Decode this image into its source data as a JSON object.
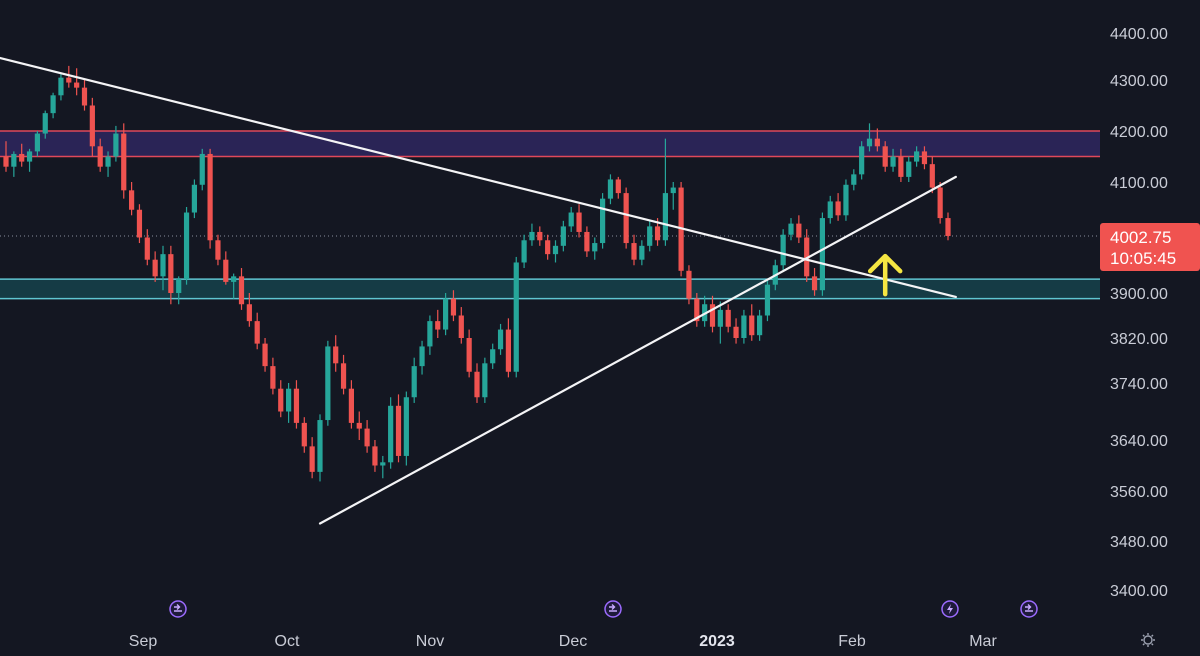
{
  "chart_data": {
    "type": "candlestick",
    "price_axis": {
      "ticks": [
        "4400.00",
        "4300.00",
        "4200.00",
        "4100.00",
        "3900.00",
        "3820.00",
        "3740.00",
        "3640.00",
        "3560.00",
        "3480.00",
        "3400.00"
      ],
      "last_price_label": "4002.75",
      "countdown_label": "10:05:45",
      "last_price": 4002.75
    },
    "time_axis": {
      "ticks": [
        {
          "label": "Sep",
          "bold": false
        },
        {
          "label": "Oct",
          "bold": false
        },
        {
          "label": "Nov",
          "bold": false
        },
        {
          "label": "Dec",
          "bold": false
        },
        {
          "label": "2023",
          "bold": true
        },
        {
          "label": "Feb",
          "bold": false
        },
        {
          "label": "Mar",
          "bold": false
        }
      ]
    },
    "zones": [
      {
        "name": "resistance-zone",
        "top": 4200,
        "bottom": 4150,
        "fill": "#2a2456",
        "border": "#e0485a"
      },
      {
        "name": "support-zone",
        "top": 3925,
        "bottom": 3890,
        "fill": "#153b45",
        "border": "#5fc6d2"
      }
    ],
    "trendlines": [
      {
        "name": "descending-trendline",
        "from": {
          "bar": -2,
          "price": 4352
        },
        "to": {
          "bar": 121,
          "price": 3893
        }
      },
      {
        "name": "ascending-trendline",
        "from": {
          "bar": 40,
          "price": 3508
        },
        "to": {
          "bar": 121,
          "price": 4110
        }
      }
    ],
    "annotation": {
      "type": "arrow-up",
      "color": "#f5e642",
      "bar": 112,
      "price": 3898
    },
    "colors": {
      "up": "#26a69a",
      "down": "#ef5350",
      "background": "#141722",
      "price_tag": "#f05350"
    },
    "candles": [
      [
        4150,
        4180,
        4120,
        4130
      ],
      [
        4130,
        4160,
        4110,
        4155
      ],
      [
        4155,
        4175,
        4130,
        4140
      ],
      [
        4140,
        4165,
        4120,
        4160
      ],
      [
        4160,
        4200,
        4150,
        4195
      ],
      [
        4195,
        4240,
        4185,
        4235
      ],
      [
        4235,
        4275,
        4225,
        4270
      ],
      [
        4270,
        4315,
        4260,
        4305
      ],
      [
        4305,
        4330,
        4285,
        4295
      ],
      [
        4295,
        4325,
        4270,
        4285
      ],
      [
        4285,
        4300,
        4240,
        4250
      ],
      [
        4250,
        4265,
        4150,
        4170
      ],
      [
        4170,
        4185,
        4120,
        4130
      ],
      [
        4130,
        4160,
        4110,
        4150
      ],
      [
        4150,
        4210,
        4140,
        4195
      ],
      [
        4195,
        4215,
        4070,
        4085
      ],
      [
        4085,
        4100,
        4040,
        4050
      ],
      [
        4050,
        4060,
        3990,
        4000
      ],
      [
        4000,
        4015,
        3950,
        3960
      ],
      [
        3960,
        3975,
        3920,
        3930
      ],
      [
        3930,
        3985,
        3905,
        3970
      ],
      [
        3970,
        3985,
        3880,
        3900
      ],
      [
        3900,
        3930,
        3880,
        3925
      ],
      [
        3925,
        4055,
        3915,
        4045
      ],
      [
        4045,
        4105,
        4035,
        4095
      ],
      [
        4095,
        4165,
        4085,
        4155
      ],
      [
        4155,
        4165,
        3980,
        3995
      ],
      [
        3995,
        4005,
        3950,
        3960
      ],
      [
        3960,
        3975,
        3915,
        3920
      ],
      [
        3920,
        3935,
        3890,
        3930
      ],
      [
        3930,
        3945,
        3870,
        3880
      ],
      [
        3880,
        3900,
        3840,
        3850
      ],
      [
        3850,
        3865,
        3800,
        3810
      ],
      [
        3810,
        3820,
        3760,
        3770
      ],
      [
        3770,
        3785,
        3720,
        3730
      ],
      [
        3730,
        3745,
        3680,
        3690
      ],
      [
        3690,
        3740,
        3670,
        3730
      ],
      [
        3730,
        3745,
        3660,
        3670
      ],
      [
        3670,
        3680,
        3620,
        3630
      ],
      [
        3630,
        3645,
        3580,
        3590
      ],
      [
        3590,
        3685,
        3575,
        3675
      ],
      [
        3675,
        3815,
        3665,
        3805
      ],
      [
        3805,
        3825,
        3760,
        3775
      ],
      [
        3775,
        3790,
        3720,
        3730
      ],
      [
        3730,
        3745,
        3660,
        3670
      ],
      [
        3670,
        3690,
        3640,
        3660
      ],
      [
        3660,
        3675,
        3620,
        3630
      ],
      [
        3630,
        3640,
        3590,
        3600
      ],
      [
        3600,
        3615,
        3580,
        3605
      ],
      [
        3605,
        3715,
        3595,
        3700
      ],
      [
        3700,
        3720,
        3605,
        3615
      ],
      [
        3615,
        3725,
        3600,
        3715
      ],
      [
        3715,
        3785,
        3705,
        3770
      ],
      [
        3770,
        3815,
        3755,
        3805
      ],
      [
        3805,
        3860,
        3790,
        3850
      ],
      [
        3850,
        3870,
        3820,
        3835
      ],
      [
        3835,
        3900,
        3825,
        3890
      ],
      [
        3890,
        3905,
        3850,
        3860
      ],
      [
        3860,
        3875,
        3810,
        3820
      ],
      [
        3820,
        3835,
        3750,
        3760
      ],
      [
        3760,
        3775,
        3705,
        3715
      ],
      [
        3715,
        3785,
        3705,
        3775
      ],
      [
        3775,
        3810,
        3765,
        3800
      ],
      [
        3800,
        3845,
        3790,
        3835
      ],
      [
        3835,
        3855,
        3750,
        3760
      ],
      [
        3760,
        3965,
        3750,
        3955
      ],
      [
        3955,
        4005,
        3945,
        3995
      ],
      [
        3995,
        4025,
        3985,
        4010
      ],
      [
        4010,
        4020,
        3985,
        3995
      ],
      [
        3995,
        4005,
        3960,
        3970
      ],
      [
        3970,
        3995,
        3955,
        3985
      ],
      [
        3985,
        4030,
        3975,
        4020
      ],
      [
        4020,
        4055,
        4010,
        4045
      ],
      [
        4045,
        4060,
        4000,
        4010
      ],
      [
        4010,
        4020,
        3965,
        3975
      ],
      [
        3975,
        4000,
        3960,
        3990
      ],
      [
        3990,
        4080,
        3980,
        4070
      ],
      [
        4070,
        4115,
        4060,
        4105
      ],
      [
        4105,
        4110,
        4070,
        4080
      ],
      [
        4080,
        4090,
        3980,
        3990
      ],
      [
        3990,
        4005,
        3950,
        3960
      ],
      [
        3960,
        3995,
        3950,
        3985
      ],
      [
        3985,
        4030,
        3975,
        4020
      ],
      [
        4020,
        4035,
        3985,
        3995
      ],
      [
        3995,
        4185,
        3985,
        4080
      ],
      [
        4080,
        4100,
        4050,
        4090
      ],
      [
        4090,
        4100,
        3930,
        3940
      ],
      [
        3940,
        3950,
        3880,
        3890
      ],
      [
        3890,
        3900,
        3840,
        3850
      ],
      [
        3850,
        3895,
        3840,
        3880
      ],
      [
        3880,
        3895,
        3830,
        3840
      ],
      [
        3840,
        3885,
        3810,
        3870
      ],
      [
        3870,
        3880,
        3830,
        3840
      ],
      [
        3840,
        3855,
        3810,
        3820
      ],
      [
        3820,
        3870,
        3810,
        3860
      ],
      [
        3860,
        3880,
        3815,
        3825
      ],
      [
        3825,
        3870,
        3815,
        3860
      ],
      [
        3860,
        3925,
        3850,
        3915
      ],
      [
        3915,
        3960,
        3905,
        3950
      ],
      [
        3950,
        4015,
        3940,
        4005
      ],
      [
        4005,
        4035,
        3995,
        4025
      ],
      [
        4025,
        4040,
        3990,
        4000
      ],
      [
        4000,
        4015,
        3920,
        3930
      ],
      [
        3930,
        3945,
        3895,
        3905
      ],
      [
        3905,
        4045,
        3895,
        4035
      ],
      [
        4035,
        4075,
        4025,
        4065
      ],
      [
        4065,
        4080,
        4030,
        4040
      ],
      [
        4040,
        4105,
        4030,
        4095
      ],
      [
        4095,
        4125,
        4085,
        4115
      ],
      [
        4115,
        4180,
        4105,
        4170
      ],
      [
        4170,
        4215,
        4160,
        4185
      ],
      [
        4185,
        4205,
        4160,
        4170
      ],
      [
        4170,
        4180,
        4120,
        4130
      ],
      [
        4130,
        4165,
        4120,
        4150
      ],
      [
        4150,
        4165,
        4100,
        4110
      ],
      [
        4110,
        4150,
        4100,
        4140
      ],
      [
        4140,
        4170,
        4130,
        4160
      ],
      [
        4160,
        4170,
        4125,
        4135
      ],
      [
        4135,
        4150,
        4080,
        4090
      ],
      [
        4090,
        4100,
        4025,
        4035
      ],
      [
        4035,
        4045,
        3995,
        4002.75
      ]
    ]
  }
}
